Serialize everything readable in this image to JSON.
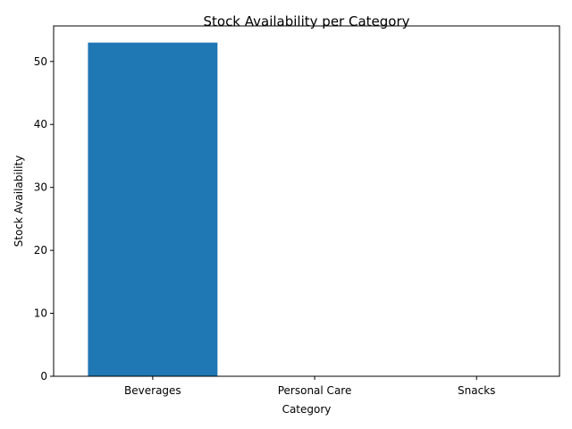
{
  "chart_data": {
    "type": "bar",
    "title": "Stock Availability per Category",
    "xlabel": "Category",
    "ylabel": "Stock Availability",
    "categories": [
      "Beverages",
      "Personal Care",
      "Snacks"
    ],
    "values": [
      53,
      0,
      0
    ],
    "ylim": [
      0,
      55.65
    ],
    "yticks": [
      0,
      10,
      20,
      30,
      40,
      50
    ],
    "bar_color": "#1f77b4",
    "grid": false,
    "legend": "none"
  }
}
